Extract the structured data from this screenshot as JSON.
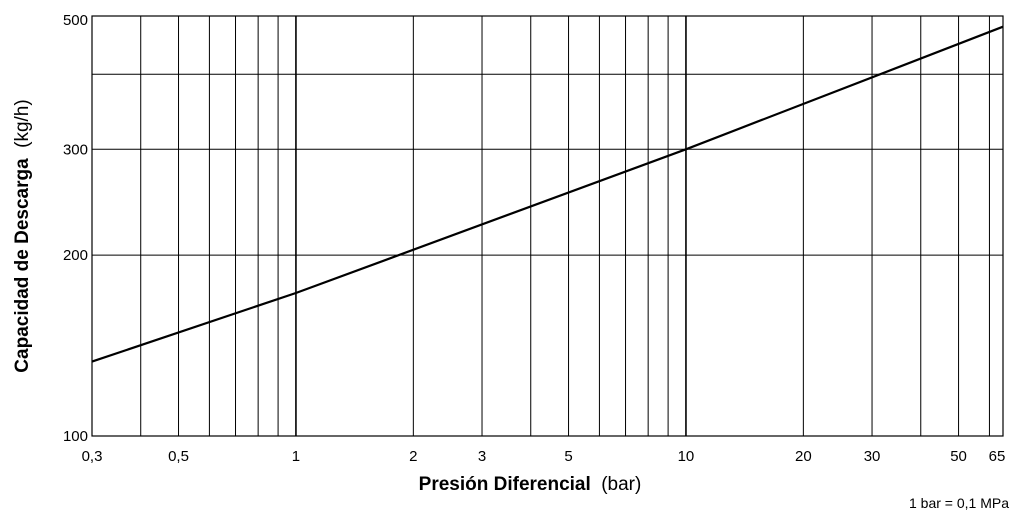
{
  "chart_data": {
    "type": "line",
    "xscale": "log",
    "yscale": "log",
    "xlim": [
      0.3,
      65
    ],
    "ylim": [
      100,
      500
    ],
    "grid": true,
    "x_major_ticks": [
      0.3,
      0.5,
      1,
      2,
      3,
      5,
      10,
      20,
      30,
      50,
      65
    ],
    "x_tick_labels": [
      "0,3",
      "0,5",
      "1",
      "2",
      "3",
      "5",
      "10",
      "20",
      "30",
      "50",
      "65"
    ],
    "x_gridlines": [
      0.4,
      0.5,
      0.6,
      0.7,
      0.8,
      0.9,
      1,
      2,
      3,
      4,
      5,
      6,
      7,
      8,
      9,
      10,
      20,
      30,
      40,
      50,
      60
    ],
    "y_major_ticks": [
      100,
      200,
      300,
      500
    ],
    "y_tick_labels": [
      "100",
      "200",
      "300",
      "500"
    ],
    "y_gridlines": [
      200,
      300,
      400
    ],
    "xlabel_bold": "Presión Diferencial",
    "xlabel_unit": "(bar)",
    "ylabel_bold": "Capacidad de Descarga",
    "ylabel_unit": "(kg/h)",
    "series": [
      {
        "x": [
          0.3,
          1,
          10,
          65
        ],
        "y": [
          133,
          173,
          300,
          480
        ]
      }
    ],
    "note": "1 bar = 0,1 MPa",
    "colors": {
      "line": "#000000",
      "grid": "#000000",
      "background": "#ffffff"
    }
  }
}
